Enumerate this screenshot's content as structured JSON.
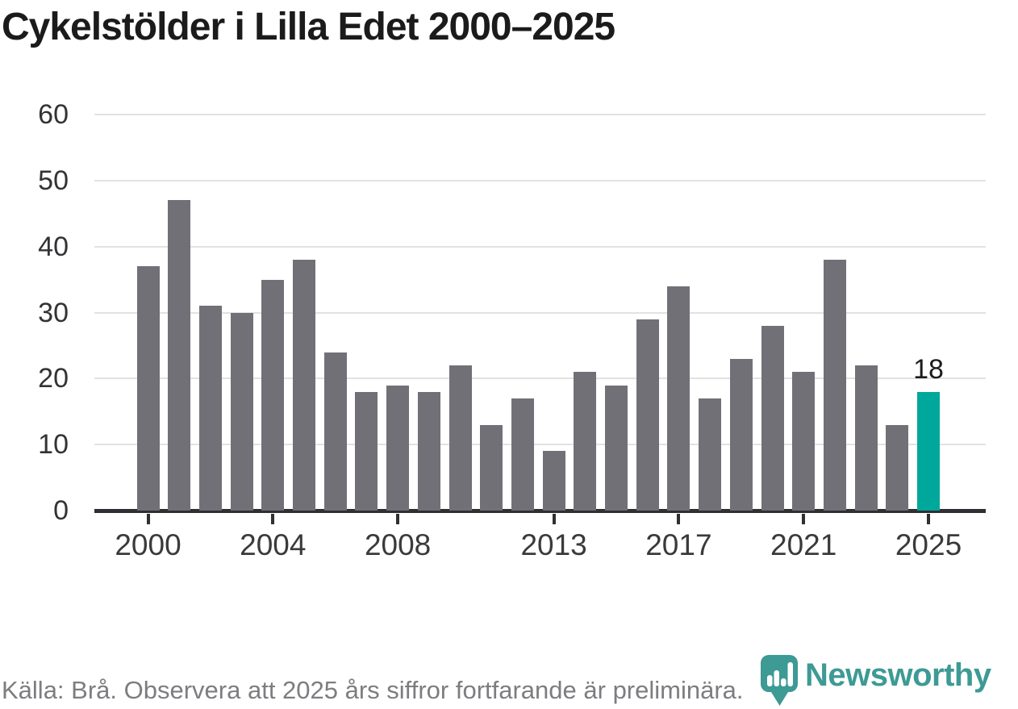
{
  "title": "Cykelstölder i Lilla Edet 2000–2025",
  "chart_data": {
    "type": "bar",
    "title": "Cykelstölder i Lilla Edet 2000–2025",
    "xlabel": "",
    "ylabel": "",
    "categories": [
      "2000",
      "2001",
      "2002",
      "2003",
      "2004",
      "2005",
      "2006",
      "2007",
      "2008",
      "2009",
      "2010",
      "2011",
      "2012",
      "2013",
      "2014",
      "2015",
      "2016",
      "2017",
      "2018",
      "2019",
      "2020",
      "2021",
      "2022",
      "2023",
      "2024",
      "2025"
    ],
    "values": [
      37,
      47,
      31,
      30,
      35,
      38,
      24,
      18,
      19,
      18,
      22,
      13,
      17,
      9,
      21,
      19,
      29,
      34,
      17,
      23,
      28,
      21,
      38,
      22,
      13,
      18
    ],
    "ylim": [
      0,
      60
    ],
    "yticks": [
      0,
      10,
      20,
      30,
      40,
      50,
      60
    ],
    "xticks": [
      {
        "index": 0,
        "label": "2000"
      },
      {
        "index": 4,
        "label": "2004"
      },
      {
        "index": 8,
        "label": "2008"
      },
      {
        "index": 13,
        "label": "2013"
      },
      {
        "index": 17,
        "label": "2017"
      },
      {
        "index": 21,
        "label": "2021"
      },
      {
        "index": 25,
        "label": "2025"
      }
    ],
    "grid": "horizontal",
    "legend": "none",
    "highlight": {
      "category": "2025",
      "value": 18,
      "label": "18"
    },
    "colors": {
      "bar": "#727077",
      "highlight": "#00a79b",
      "gridline": "#e2e2e2",
      "axis": "#302f33"
    }
  },
  "footer": {
    "source": "Källa: Brå. Observera att 2025 års siffror fortfarande är preliminära."
  },
  "logo": {
    "wordmark": "Newsworthy",
    "color": "#3d9a94"
  }
}
